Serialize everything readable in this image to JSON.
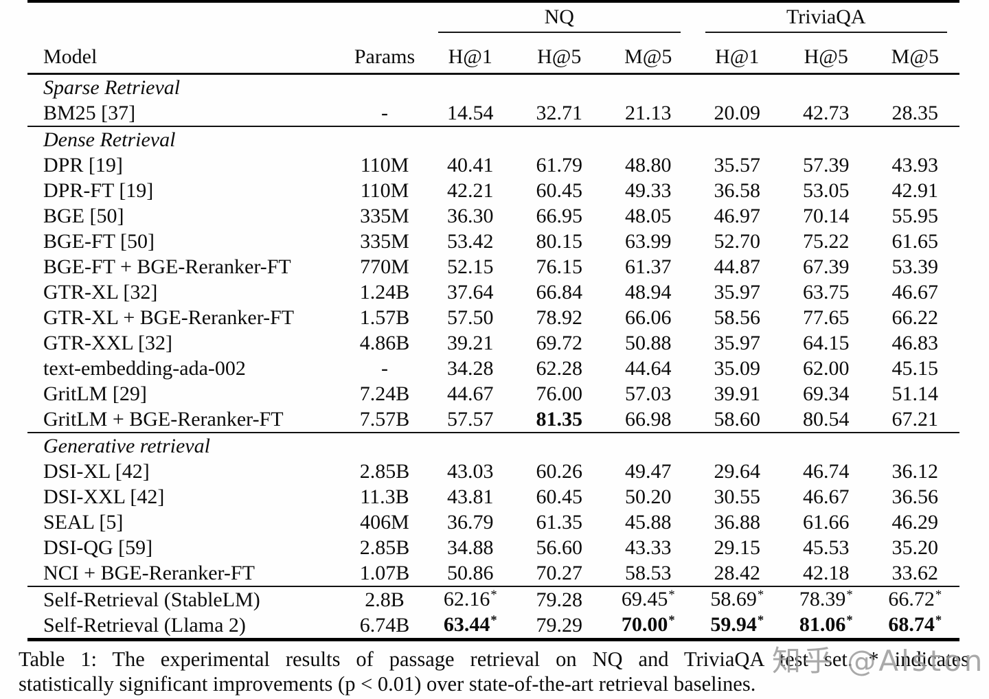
{
  "table": {
    "group_headers": [
      "NQ",
      "TriviaQA"
    ],
    "columns": [
      "Model",
      "Params",
      "H@1",
      "H@5",
      "M@5",
      "H@1",
      "H@5",
      "M@5"
    ],
    "sections": [
      {
        "label": "Sparse Retrieval",
        "rule_top": false,
        "rows": [
          {
            "model": "BM25 [37]",
            "params": "-",
            "cells": [
              {
                "v": "14.54"
              },
              {
                "v": "32.71"
              },
              {
                "v": "21.13"
              },
              {
                "v": "20.09"
              },
              {
                "v": "42.73"
              },
              {
                "v": "28.35"
              }
            ]
          }
        ]
      },
      {
        "label": "Dense Retrieval",
        "rule_top": true,
        "rows": [
          {
            "model": "DPR [19]",
            "params": "110M",
            "cells": [
              {
                "v": "40.41"
              },
              {
                "v": "61.79"
              },
              {
                "v": "48.80"
              },
              {
                "v": "35.57"
              },
              {
                "v": "57.39"
              },
              {
                "v": "43.93"
              }
            ]
          },
          {
            "model": "DPR-FT [19]",
            "params": "110M",
            "cells": [
              {
                "v": "42.21"
              },
              {
                "v": "60.45"
              },
              {
                "v": "49.33"
              },
              {
                "v": "36.58"
              },
              {
                "v": "53.05"
              },
              {
                "v": "42.91"
              }
            ]
          },
          {
            "model": "BGE [50]",
            "params": "335M",
            "cells": [
              {
                "v": "36.30"
              },
              {
                "v": "66.95"
              },
              {
                "v": "48.05"
              },
              {
                "v": "46.97"
              },
              {
                "v": "70.14"
              },
              {
                "v": "55.95"
              }
            ]
          },
          {
            "model": "BGE-FT [50]",
            "params": "335M",
            "cells": [
              {
                "v": "53.42"
              },
              {
                "v": "80.15"
              },
              {
                "v": "63.99"
              },
              {
                "v": "52.70"
              },
              {
                "v": "75.22"
              },
              {
                "v": "61.65"
              }
            ]
          },
          {
            "model": "BGE-FT + BGE-Reranker-FT",
            "params": "770M",
            "cells": [
              {
                "v": "52.15"
              },
              {
                "v": "76.15"
              },
              {
                "v": "61.37"
              },
              {
                "v": "44.87"
              },
              {
                "v": "67.39"
              },
              {
                "v": "53.39"
              }
            ]
          },
          {
            "model": "GTR-XL [32]",
            "params": "1.24B",
            "cells": [
              {
                "v": "37.64"
              },
              {
                "v": "66.84"
              },
              {
                "v": "48.94"
              },
              {
                "v": "35.97"
              },
              {
                "v": "63.75"
              },
              {
                "v": "46.67"
              }
            ]
          },
          {
            "model": "GTR-XL + BGE-Reranker-FT",
            "params": "1.57B",
            "cells": [
              {
                "v": "57.50"
              },
              {
                "v": "78.92"
              },
              {
                "v": "66.06"
              },
              {
                "v": "58.56"
              },
              {
                "v": "77.65"
              },
              {
                "v": "66.22"
              }
            ]
          },
          {
            "model": "GTR-XXL [32]",
            "params": "4.86B",
            "cells": [
              {
                "v": "39.21"
              },
              {
                "v": "69.72"
              },
              {
                "v": "50.88"
              },
              {
                "v": "35.97"
              },
              {
                "v": "64.15"
              },
              {
                "v": "46.83"
              }
            ]
          },
          {
            "model": "text-embedding-ada-002",
            "params": "-",
            "cells": [
              {
                "v": "34.28"
              },
              {
                "v": "62.28"
              },
              {
                "v": "44.64"
              },
              {
                "v": "35.09"
              },
              {
                "v": "62.00"
              },
              {
                "v": "45.15"
              }
            ]
          },
          {
            "model": "GritLM [29]",
            "params": "7.24B",
            "cells": [
              {
                "v": "44.67"
              },
              {
                "v": "76.00"
              },
              {
                "v": "57.03"
              },
              {
                "v": "39.91"
              },
              {
                "v": "69.34"
              },
              {
                "v": "51.14"
              }
            ]
          },
          {
            "model": "GritLM + BGE-Reranker-FT",
            "params": "7.57B",
            "cells": [
              {
                "v": "57.57"
              },
              {
                "v": "81.35",
                "bold": true
              },
              {
                "v": "66.98"
              },
              {
                "v": "58.60"
              },
              {
                "v": "80.54"
              },
              {
                "v": "67.21"
              }
            ]
          }
        ]
      },
      {
        "label": "Generative retrieval",
        "rule_top": true,
        "rows": [
          {
            "model": "DSI-XL [42]",
            "params": "2.85B",
            "cells": [
              {
                "v": "43.03"
              },
              {
                "v": "60.26"
              },
              {
                "v": "49.47"
              },
              {
                "v": "29.64"
              },
              {
                "v": "46.74"
              },
              {
                "v": "36.12"
              }
            ]
          },
          {
            "model": "DSI-XXL [42]",
            "params": "11.3B",
            "cells": [
              {
                "v": "43.81"
              },
              {
                "v": "60.45"
              },
              {
                "v": "50.20"
              },
              {
                "v": "30.55"
              },
              {
                "v": "46.67"
              },
              {
                "v": "36.56"
              }
            ]
          },
          {
            "model": "SEAL [5]",
            "params": "406M",
            "cells": [
              {
                "v": "36.79"
              },
              {
                "v": "61.35"
              },
              {
                "v": "45.88"
              },
              {
                "v": "36.88"
              },
              {
                "v": "61.66"
              },
              {
                "v": "46.29"
              }
            ]
          },
          {
            "model": "DSI-QG [59]",
            "params": "2.85B",
            "cells": [
              {
                "v": "34.88"
              },
              {
                "v": "56.60"
              },
              {
                "v": "43.33"
              },
              {
                "v": "29.15"
              },
              {
                "v": "45.53"
              },
              {
                "v": "35.20"
              }
            ]
          },
          {
            "model": "NCI + BGE-Reranker-FT",
            "params": "1.07B",
            "cells": [
              {
                "v": "50.86"
              },
              {
                "v": "70.27"
              },
              {
                "v": "58.53"
              },
              {
                "v": "28.42"
              },
              {
                "v": "42.18"
              },
              {
                "v": "33.62"
              }
            ]
          }
        ]
      },
      {
        "label": null,
        "rule_top": true,
        "rows": [
          {
            "model": "Self-Retrieval (StableLM)",
            "params": "2.8B",
            "cells": [
              {
                "v": "62.16",
                "star": true
              },
              {
                "v": "79.28"
              },
              {
                "v": "69.45",
                "star": true
              },
              {
                "v": "58.69",
                "star": true
              },
              {
                "v": "78.39",
                "star": true
              },
              {
                "v": "66.72",
                "star": true
              }
            ]
          },
          {
            "model": "Self-Retrieval (Llama 2)",
            "params": "6.74B",
            "cells": [
              {
                "v": "63.44",
                "star": true,
                "bold": true
              },
              {
                "v": "79.29"
              },
              {
                "v": "70.00",
                "star": true,
                "bold": true
              },
              {
                "v": "59.94",
                "star": true,
                "bold": true
              },
              {
                "v": "81.06",
                "star": true,
                "bold": true
              },
              {
                "v": "68.74",
                "star": true,
                "bold": true
              }
            ]
          }
        ]
      }
    ]
  },
  "caption": {
    "line1": "Table 1: The experimental results of passage retrieval on NQ and TriviaQA test set. * indicates",
    "line2": "statistically significant improvements (p < 0.01) over state-of-the-art retrieval baselines."
  },
  "watermark": {
    "text": "知乎 @Alston",
    "color": "#9b9b9b"
  }
}
